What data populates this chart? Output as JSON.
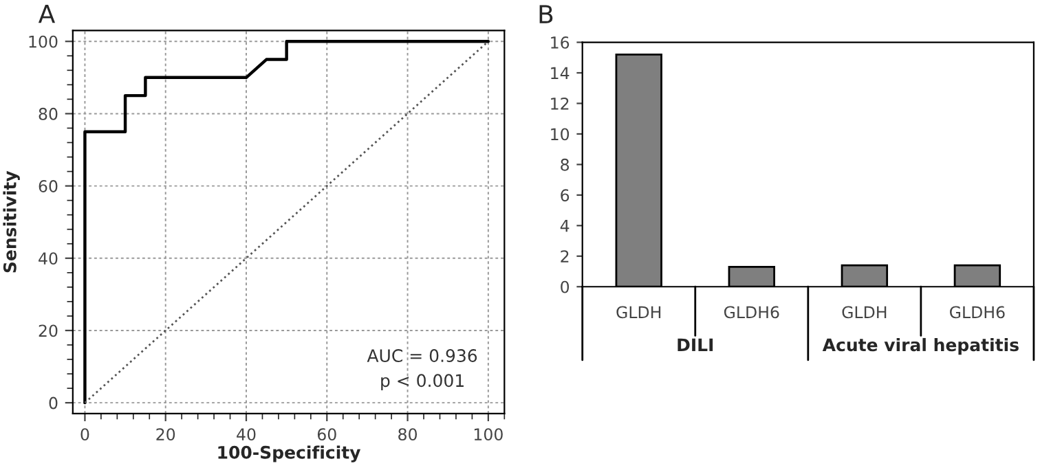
{
  "chart_data": [
    {
      "type": "line",
      "title": "A",
      "xlabel": "100-Specificity",
      "ylabel": "Sensitivity",
      "xlim": [
        -3,
        104
      ],
      "ylim": [
        -3,
        103
      ],
      "xticks": [
        0,
        20,
        40,
        60,
        80,
        100
      ],
      "yticks": [
        0,
        20,
        40,
        60,
        80,
        100
      ],
      "grid": true,
      "marker": "none",
      "series": [
        {
          "color": "#000000",
          "line_style": "solid",
          "x": [
            0,
            0,
            10,
            10,
            15,
            15,
            40,
            42,
            45,
            50,
            50,
            100
          ],
          "values": [
            0,
            75,
            75,
            85,
            85,
            90,
            90,
            92,
            95,
            95,
            100,
            100
          ]
        },
        {
          "color": "#555555",
          "line_style": "dotted",
          "x": [
            0,
            100
          ],
          "values": [
            0,
            100
          ]
        }
      ],
      "annotations": [
        "AUC = 0.936",
        "p < 0.001"
      ]
    },
    {
      "type": "bar",
      "title": "B",
      "categories": [
        "GLDH",
        "GLDH6",
        "GLDH",
        "GLDH6"
      ],
      "values": [
        15.2,
        1.3,
        1.4,
        1.4
      ],
      "color": "#7f7f7f",
      "ylim": [
        0,
        16
      ],
      "yticks": [
        0,
        2,
        4,
        6,
        8,
        10,
        12,
        14,
        16
      ],
      "grid": false,
      "annotations": [
        "DILI",
        "Acute viral hepatitis"
      ]
    }
  ]
}
